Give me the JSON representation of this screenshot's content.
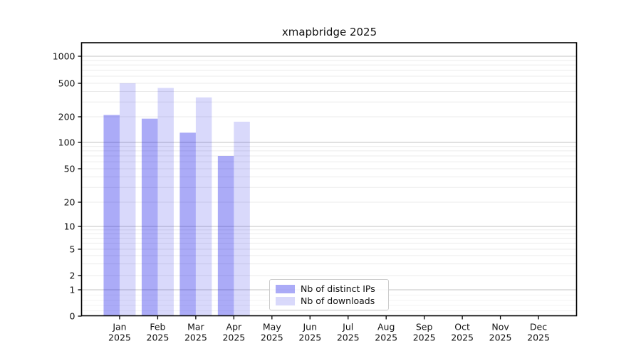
{
  "chart_data": {
    "type": "bar",
    "title": "xmapbridge 2025",
    "year_label": "2025",
    "categories": [
      "Jan",
      "Feb",
      "Mar",
      "Apr",
      "May",
      "Jun",
      "Jul",
      "Aug",
      "Sep",
      "Oct",
      "Nov",
      "Dec"
    ],
    "series": [
      {
        "name": "Nb of distinct IPs",
        "fill": "rgba(0,0,230,0.33)",
        "fill_hex_on_white": "#aaaaf5",
        "values": [
          210,
          190,
          130,
          70
        ]
      },
      {
        "name": "Nb of downloads",
        "fill": "rgba(0,0,230,0.15)",
        "fill_hex_on_white": "#dcdcf8",
        "values": [
          500,
          440,
          340,
          175
        ]
      }
    ],
    "y_ticks": [
      0,
      1,
      2,
      5,
      10,
      20,
      50,
      100,
      200,
      500,
      1000
    ],
    "y_scale": "symlog",
    "ylim": [
      0,
      1400
    ],
    "xlabel": "",
    "ylabel": "",
    "grid": true,
    "major_grid_values": [
      1,
      10,
      100,
      1000
    ],
    "legend_position": "lower-center",
    "colors": {
      "major_grid": "#c3c3c3",
      "minor_grid": "#ebebeb",
      "faint_grid": "#f3f3f3",
      "spine": "#000000",
      "text": "#111111"
    }
  }
}
